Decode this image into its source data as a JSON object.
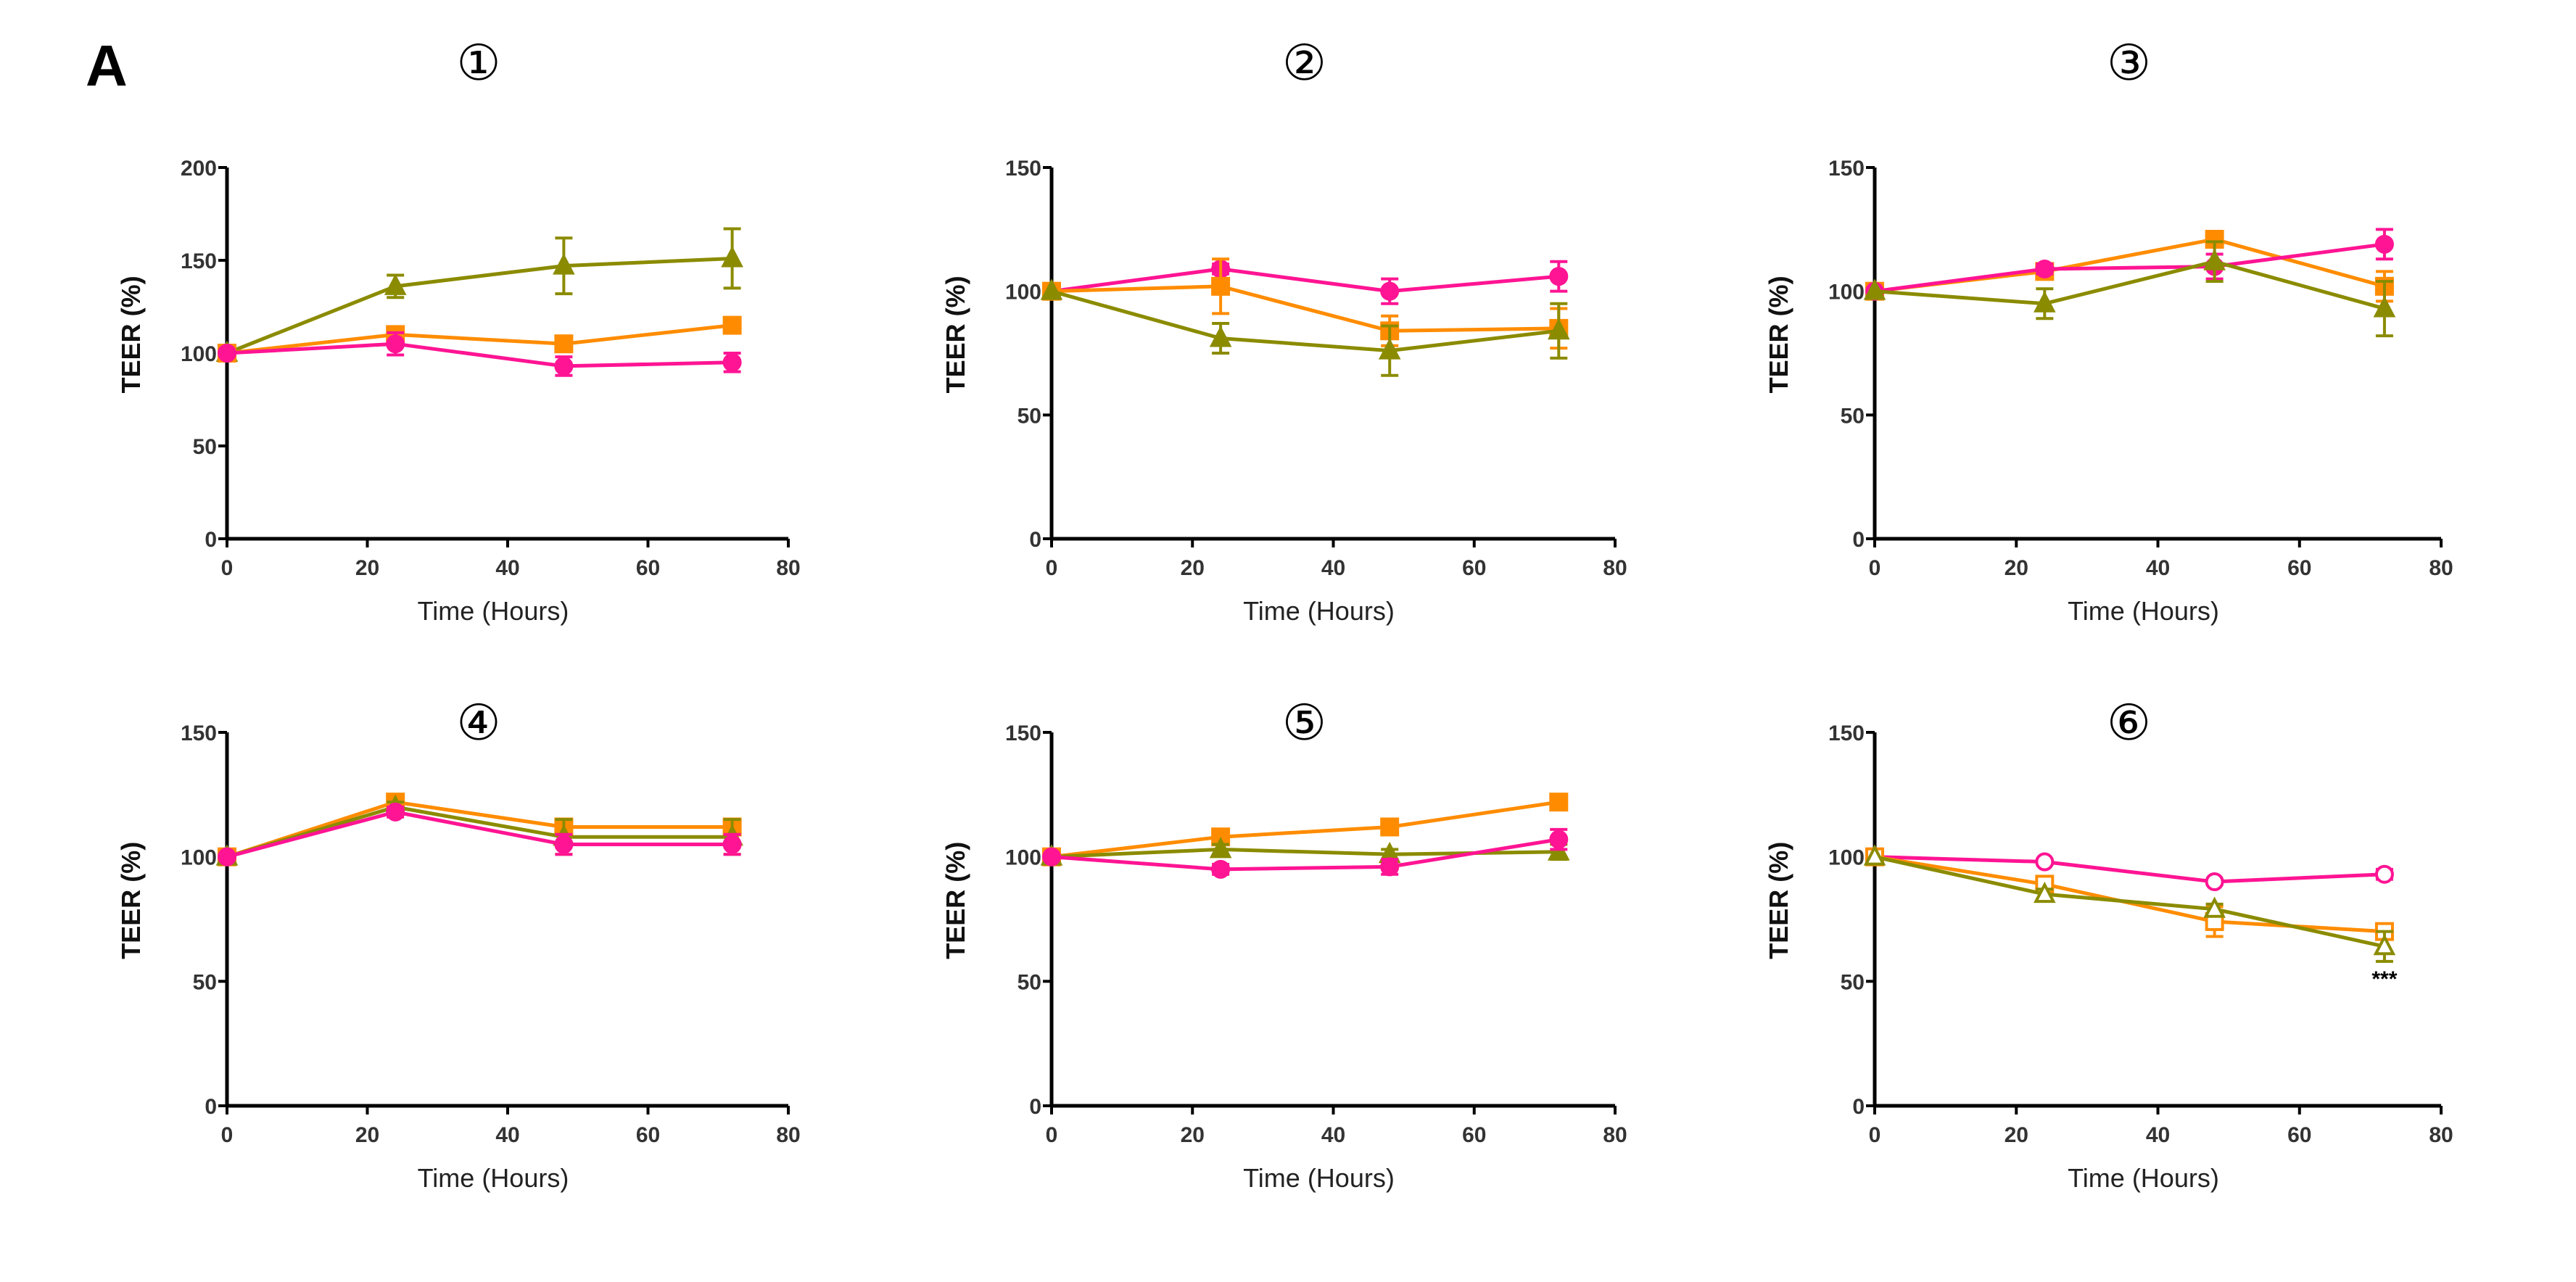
{
  "figure_label": "A",
  "colors": {
    "green": "#8b8b00",
    "orange": "#ff8c00",
    "pink": "#ff1493"
  },
  "chart_data": [
    {
      "type": "line",
      "title": "①",
      "xlabel": "Time (Hours)",
      "ylabel": "TEER (%)",
      "xlim": [
        0,
        80
      ],
      "ylim": [
        0,
        200
      ],
      "xticks": [
        "0",
        "20",
        "40",
        "60",
        "80"
      ],
      "yticks": [
        "0",
        "50",
        "100",
        "150",
        "200"
      ],
      "x": [
        0,
        24,
        48,
        72
      ],
      "series": [
        {
          "name": "green",
          "marker": "triangle",
          "filled": true,
          "values": [
            100,
            136,
            147,
            151
          ],
          "err": [
            0,
            6,
            15,
            16
          ]
        },
        {
          "name": "orange",
          "marker": "square",
          "filled": true,
          "values": [
            100,
            110,
            105,
            115
          ],
          "err": [
            0,
            3,
            3,
            3
          ]
        },
        {
          "name": "pink",
          "marker": "circle",
          "filled": true,
          "values": [
            100,
            105,
            93,
            95
          ],
          "err": [
            0,
            6,
            5,
            5
          ]
        }
      ]
    },
    {
      "type": "line",
      "title": "②",
      "xlabel": "Time (Hours)",
      "ylabel": "TEER (%)",
      "xlim": [
        0,
        80
      ],
      "ylim": [
        0,
        150
      ],
      "xticks": [
        "0",
        "20",
        "40",
        "60",
        "80"
      ],
      "yticks": [
        "0",
        "50",
        "100",
        "150"
      ],
      "x": [
        0,
        24,
        48,
        72
      ],
      "series": [
        {
          "name": "pink",
          "marker": "circle",
          "filled": true,
          "values": [
            100,
            109,
            100,
            106
          ],
          "err": [
            0,
            2,
            5,
            6
          ]
        },
        {
          "name": "orange",
          "marker": "square",
          "filled": true,
          "values": [
            100,
            102,
            84,
            85
          ],
          "err": [
            0,
            11,
            6,
            8
          ]
        },
        {
          "name": "green",
          "marker": "triangle",
          "filled": true,
          "values": [
            100,
            81,
            76,
            84
          ],
          "err": [
            0,
            6,
            10,
            11
          ]
        }
      ]
    },
    {
      "type": "line",
      "title": "③",
      "xlabel": "Time (Hours)",
      "ylabel": "TEER (%)",
      "xlim": [
        0,
        80
      ],
      "ylim": [
        0,
        150
      ],
      "xticks": [
        "0",
        "20",
        "40",
        "60",
        "80"
      ],
      "yticks": [
        "0",
        "50",
        "100",
        "150"
      ],
      "x": [
        0,
        24,
        48,
        72
      ],
      "series": [
        {
          "name": "orange",
          "marker": "square",
          "filled": true,
          "values": [
            100,
            108,
            121,
            102
          ],
          "err": [
            0,
            2,
            2,
            6
          ]
        },
        {
          "name": "pink",
          "marker": "circle",
          "filled": true,
          "values": [
            100,
            109,
            110,
            119
          ],
          "err": [
            0,
            2,
            5,
            6
          ]
        },
        {
          "name": "green",
          "marker": "triangle",
          "filled": true,
          "values": [
            100,
            95,
            112,
            93
          ],
          "err": [
            0,
            6,
            8,
            11
          ]
        }
      ]
    },
    {
      "type": "line",
      "title": "④",
      "xlabel": "Time (Hours)",
      "ylabel": "TEER (%)",
      "xlim": [
        0,
        80
      ],
      "ylim": [
        0,
        150
      ],
      "xticks": [
        "0",
        "20",
        "40",
        "60",
        "80"
      ],
      "yticks": [
        "0",
        "50",
        "100",
        "150"
      ],
      "x": [
        0,
        24,
        48,
        72
      ],
      "series": [
        {
          "name": "orange",
          "marker": "square",
          "filled": true,
          "values": [
            100,
            122,
            112,
            112
          ],
          "err": [
            0,
            2,
            2,
            2
          ]
        },
        {
          "name": "green",
          "marker": "triangle",
          "filled": true,
          "values": [
            100,
            120,
            108,
            108
          ],
          "err": [
            0,
            2,
            7,
            7
          ]
        },
        {
          "name": "pink",
          "marker": "circle",
          "filled": true,
          "values": [
            100,
            118,
            105,
            105
          ],
          "err": [
            0,
            2,
            4,
            4
          ]
        }
      ]
    },
    {
      "type": "line",
      "title": "⑤",
      "xlabel": "Time (Hours)",
      "ylabel": "TEER (%)",
      "xlim": [
        0,
        80
      ],
      "ylim": [
        0,
        150
      ],
      "xticks": [
        "0",
        "20",
        "40",
        "60",
        "80"
      ],
      "yticks": [
        "0",
        "50",
        "100",
        "150"
      ],
      "x": [
        0,
        24,
        48,
        72
      ],
      "series": [
        {
          "name": "orange",
          "marker": "square",
          "filled": true,
          "values": [
            100,
            108,
            112,
            122
          ],
          "err": [
            0,
            2,
            2,
            3
          ]
        },
        {
          "name": "green",
          "marker": "triangle",
          "filled": true,
          "values": [
            100,
            103,
            101,
            102
          ],
          "err": [
            0,
            2,
            2,
            3
          ]
        },
        {
          "name": "pink",
          "marker": "circle",
          "filled": true,
          "values": [
            100,
            95,
            96,
            107
          ],
          "err": [
            0,
            2,
            3,
            4
          ]
        }
      ]
    },
    {
      "type": "line",
      "title": "⑥",
      "xlabel": "Time (Hours)",
      "ylabel": "TEER (%)",
      "xlim": [
        0,
        80
      ],
      "ylim": [
        0,
        150
      ],
      "xticks": [
        "0",
        "20",
        "40",
        "60",
        "80"
      ],
      "yticks": [
        "0",
        "50",
        "100",
        "150"
      ],
      "x": [
        0,
        24,
        48,
        72
      ],
      "annotation": "***",
      "series": [
        {
          "name": "pink",
          "marker": "circle",
          "filled": false,
          "values": [
            100,
            98,
            90,
            93
          ],
          "err": [
            0,
            1,
            1,
            2
          ]
        },
        {
          "name": "orange",
          "marker": "square",
          "filled": false,
          "values": [
            100,
            89,
            74,
            70
          ],
          "err": [
            0,
            3,
            6,
            2
          ]
        },
        {
          "name": "green",
          "marker": "triangle",
          "filled": false,
          "values": [
            100,
            85,
            79,
            64
          ],
          "err": [
            0,
            2,
            2,
            6
          ]
        }
      ]
    }
  ]
}
